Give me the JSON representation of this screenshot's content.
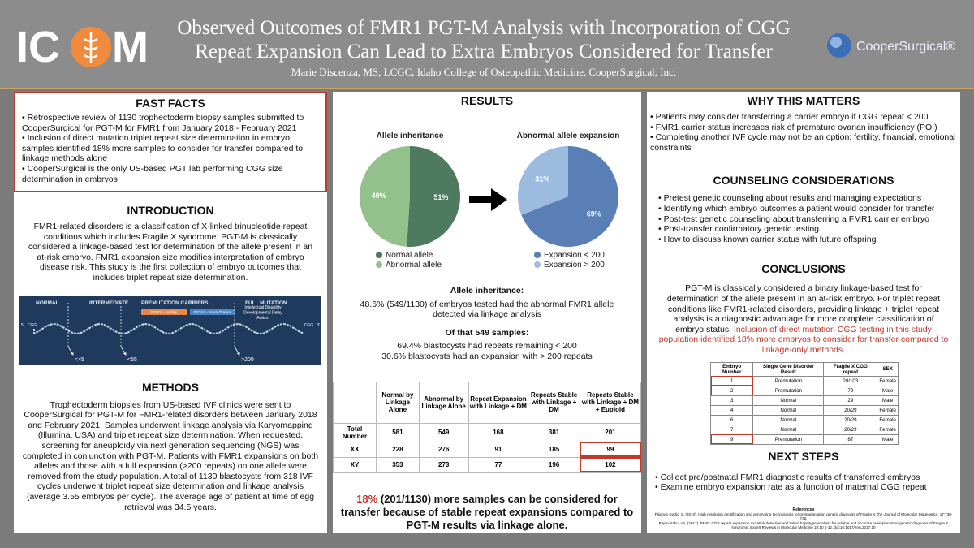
{
  "header": {
    "logo_left": "IC",
    "logo_right": "M",
    "title_lines": [
      "Observed Outcomes of FMR1 PGT-M Analysis with Incorporation of CGG",
      "Repeat Expansion Can Lead to Extra Embryos Considered for Transfer"
    ],
    "authors": "Marie Discenza, MS, LCGC, Idaho College of Osteopathic Medicine, CooperSurgical, Inc.",
    "sponsor": "CooperSurgical®"
  },
  "fast_facts": {
    "heading": "FAST FACTS",
    "items": [
      "Retrospective review of 1130 trophectoderm biopsy samples submitted to CooperSurgical for PGT-M for FMR1 from January 2018 - February 2021",
      "Inclusion of direct mutation triplet repeat size determination in embryo samples identified 18% more samples to consider for transfer compared to linkage methods alone",
      "CooperSurgical is the only US-based PGT lab performing CGG size determination in embryos"
    ]
  },
  "introduction": {
    "heading": "INTRODUCTION",
    "text": "FMR1-related disorders is a classification of X-linked trinucleotide repeat conditions which includes Fragile X syndrome. PGT-M is classically considered a linkage-based test for determination of the allele present in an at-risk embryo. FMR1 expansion size modifies interpretation of embryo disease risk. This study is the first collection of embryo outcomes that includes triplet repeat size determination.",
    "figure": {
      "stages": [
        "NORMAL",
        "INTERMEDIATE",
        "PREMUTATION CARRIERS",
        "FULL MUTATION"
      ],
      "tags": [
        "FXPOI - Fertility",
        "FXTAS - Ataxia/Tremor"
      ],
      "outcome": [
        "Intellectual Disability",
        "Developmental Delay",
        "Autism"
      ],
      "ends": [
        "5'...CGG",
        "...CGG...3'"
      ],
      "thresholds": [
        "<45",
        "<55",
        ">200"
      ]
    }
  },
  "methods": {
    "heading": "METHODS",
    "text": "Trophectoderm biopsies from US-based IVF clinics were sent to CooperSurgical for PGT-M for FMR1-related disorders between January 2018 and February 2021. Samples underwent linkage analysis via Karyomapping (Illumina, USA) and triplet repeat size determination. When requested, screening for aneuploidy via next generation sequencing (NGS) was completed in conjunction with PGT-M. Patients with FMR1 expansions on both alleles and those with a full expansion (>200 repeats) on one allele were removed from the study population. A total of 1130 blastocysts from 318 IVF cycles underwent triplet repeat size determination and linkage analysis (average 3.55 embryos per cycle). The average age of patient at time of egg retrieval was 34.5 years."
  },
  "results": {
    "heading": "RESULTS",
    "summary_heading": "Allele inheritance:",
    "summary": "48.6% (549/1130) of embryos tested had the abnormal FMR1 allele detected via linkage analysis",
    "subset_heading": "Of that 549 samples:",
    "subset": [
      "69.4% blastocysts had repeats remaining < 200",
      "30.6% blastocysts had an expansion with > 200 repeats"
    ],
    "table": {
      "headers": [
        "Normal by Linkage Alone",
        "Abnormal by Linkage Alone",
        "Repeat Expansion with Linkage + DM",
        "Repeats Stable with Linkage + DM",
        "Repeats Stable with Linkage + DM + Euploid"
      ],
      "rows": [
        {
          "label": "Total Number",
          "values": [
            581,
            549,
            168,
            381,
            201
          ]
        },
        {
          "label": "XX",
          "values": [
            228,
            276,
            91,
            185,
            99
          ]
        },
        {
          "label": "XY",
          "values": [
            353,
            273,
            77,
            196,
            102
          ]
        }
      ]
    },
    "highlight": "18%",
    "conclusion": "(201/1130) more samples can be considered for transfer because of stable repeat expansions compared to PGT-M results via linkage alone."
  },
  "why_matters": {
    "heading": "WHY THIS MATTERS",
    "items": [
      "Patients may consider transferring a carrier embryo if CGG repeat < 200",
      "FMR1 carrier status increases risk of premature ovarian insufficiency (POI)",
      "Completing another IVF cycle may not be an option: fertility, financial, emotional constraints"
    ]
  },
  "counseling": {
    "heading": "COUNSELING CONSIDERATIONS",
    "items": [
      "Pretest genetic counseling about results and managing expectations",
      "Identifying which embryo outcomes a patient would consider for transfer",
      "Post-test genetic counseling about transferring a FMR1 carrier embryo",
      "Post-transfer confirmatory genetic testing",
      "How to discuss known carrier status with future offspring"
    ]
  },
  "conclusions": {
    "heading": "CONCLUSIONS",
    "text": "PGT-M is classically considered a binary linkage-based test for determination of the allele present in an at-risk embryo. For triplet repeat conditions like FMR1-related disorders, providing linkage + triplet repeat analysis is a diagnostic advantage for more complete classification of embryo status.",
    "highlight": "Inclusion of direct mutation CGG testing in this study population identified 18% more embryos to consider for transfer compared to linkage-only methods.",
    "table": {
      "headers": [
        "Embryo Number",
        "Single Gene Disorder Result",
        "Fragile X CGG repeat",
        "SEX"
      ],
      "rows": [
        [
          1,
          "Premutation",
          "20/103",
          "Female"
        ],
        [
          2,
          "Premutation",
          "79",
          "Male"
        ],
        [
          3,
          "Normal",
          "29",
          "Male"
        ],
        [
          4,
          "Normal",
          "20/29",
          "Female"
        ],
        [
          6,
          "Normal",
          "20/29",
          "Female"
        ],
        [
          7,
          "Normal",
          "20/29",
          "Female"
        ],
        [
          9,
          "Premutation",
          "87",
          "Male"
        ]
      ]
    }
  },
  "next_steps": {
    "heading": "NEXT STEPS",
    "items": [
      "Collect pre/postnatal FMR1 diagnostic results of transferred embryos",
      "Examine embryo expansion rate as a function of maternal CGG repeat"
    ]
  },
  "references": {
    "heading": "References",
    "items": [
      "Filipovic-Sadic, S. (2010). High resolution amplification and genotyping technologies for preimplantation genetic diagnosis of Fragile X.The Journal of Molecular Diagnostics, 17:730-736.",
      "Rajan-Babu, I-S. (2017). FMR1 CGG repeat expansion mutation detection and linked haplotype analysis for reliable and accurate preimplantation genetic diagnosis of Fragile X syndrome. Expert Reviews in Molecular Medicine 19:10 1-12. doi:10.1017/erm.2017.10"
    ]
  },
  "chart_data": [
    {
      "type": "pie",
      "title": "Allele inheritance",
      "categories": [
        "Normal allele",
        "Abnormal allele"
      ],
      "values": [
        51,
        49
      ],
      "value_labels": [
        "51%",
        "49%"
      ],
      "colors": [
        "#4e7b5f",
        "#93c18b"
      ]
    },
    {
      "type": "pie",
      "title": "Abnormal allele expansion",
      "categories": [
        "Expansion < 200",
        "Expansion > 200"
      ],
      "values": [
        69,
        31
      ],
      "value_labels": [
        "69%",
        "31%"
      ],
      "colors": [
        "#5a7fb6",
        "#9dbbdf"
      ]
    }
  ]
}
